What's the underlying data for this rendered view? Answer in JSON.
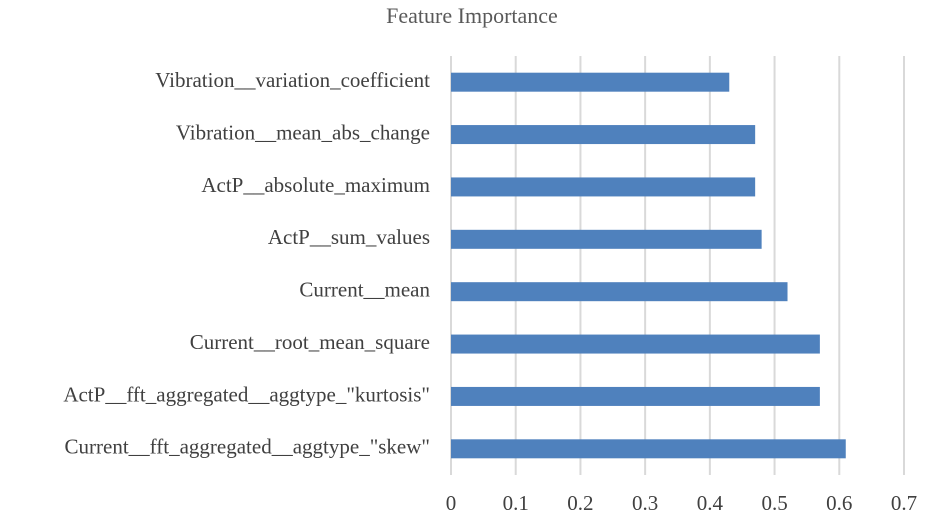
{
  "chart_data": {
    "type": "barh",
    "title": "Feature Importance",
    "categories": [
      "Vibration__variation_coefficient",
      "Vibration__mean_abs_change",
      "ActP__absolute_maximum",
      "ActP__sum_values",
      "Current__mean",
      "Current__root_mean_square",
      "ActP__fft_aggregated__aggtype_\"kurtosis\"",
      "Current__fft_aggregated__aggtype_\"skew\""
    ],
    "values": [
      0.43,
      0.47,
      0.47,
      0.48,
      0.52,
      0.57,
      0.57,
      0.61
    ],
    "color": "#4f81bd",
    "xlim": [
      0,
      0.7
    ],
    "xticks": [
      0,
      0.1,
      0.2,
      0.3,
      0.4,
      0.5,
      0.6,
      0.7
    ],
    "grid": true
  }
}
